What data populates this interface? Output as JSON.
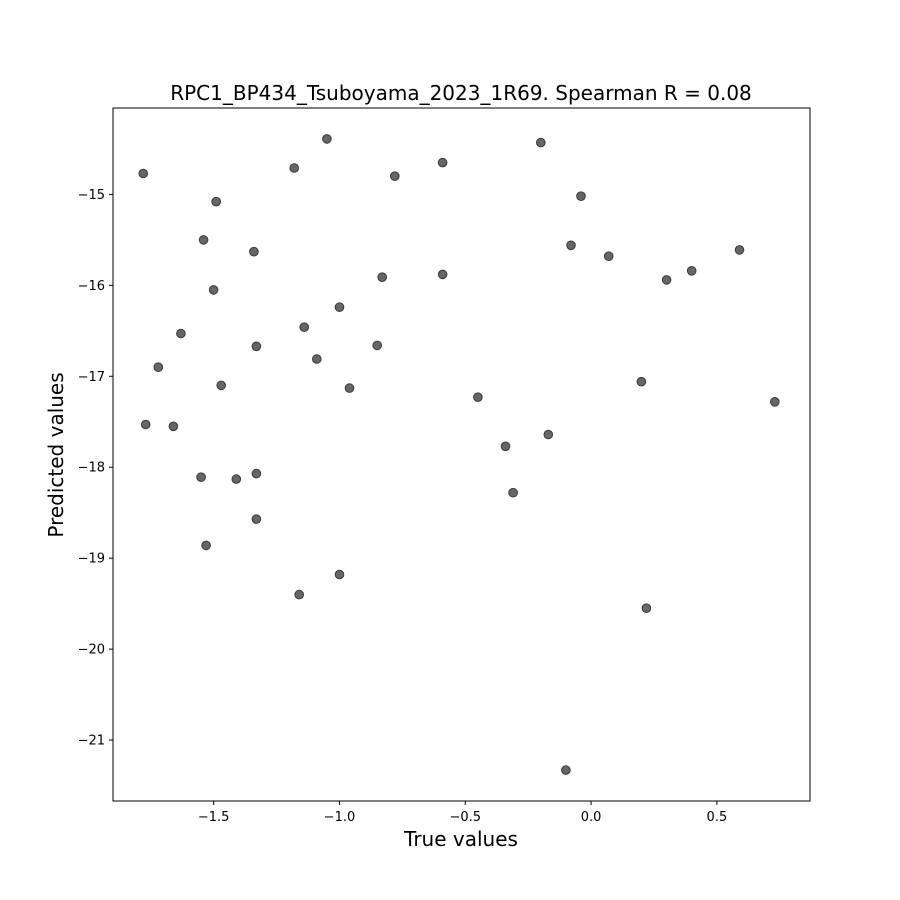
{
  "chart_data": {
    "type": "scatter",
    "title": "RPC1_BP434_Tsuboyama_2023_1R69. Spearman R = 0.08",
    "xlabel": "True values",
    "ylabel": "Predicted values",
    "xlim": [
      -1.9,
      0.87
    ],
    "ylim": [
      -21.67,
      -14.05
    ],
    "xticks": [
      -1.5,
      -1.0,
      -0.5,
      0.0,
      0.5
    ],
    "xtick_labels": [
      "−1.5",
      "−1.0",
      "−0.5",
      "0.0",
      "0.5"
    ],
    "yticks": [
      -15,
      -16,
      -17,
      -18,
      -19,
      -20,
      -21
    ],
    "ytick_labels": [
      "−15",
      "−16",
      "−17",
      "−18",
      "−19",
      "−20",
      "−21"
    ],
    "grid": false,
    "marker_color": "#666666",
    "marker_edge_color": "#3a3a3a",
    "points": [
      {
        "x": -1.78,
        "y": -14.77
      },
      {
        "x": -1.77,
        "y": -17.53
      },
      {
        "x": -1.72,
        "y": -16.9
      },
      {
        "x": -1.66,
        "y": -17.55
      },
      {
        "x": -1.63,
        "y": -16.53
      },
      {
        "x": -1.55,
        "y": -18.11
      },
      {
        "x": -1.54,
        "y": -15.5
      },
      {
        "x": -1.53,
        "y": -18.86
      },
      {
        "x": -1.5,
        "y": -16.05
      },
      {
        "x": -1.49,
        "y": -15.08
      },
      {
        "x": -1.47,
        "y": -17.1
      },
      {
        "x": -1.41,
        "y": -18.13
      },
      {
        "x": -1.34,
        "y": -15.63
      },
      {
        "x": -1.33,
        "y": -16.67
      },
      {
        "x": -1.33,
        "y": -18.07
      },
      {
        "x": -1.33,
        "y": -18.57
      },
      {
        "x": -1.18,
        "y": -14.71
      },
      {
        "x": -1.16,
        "y": -19.4
      },
      {
        "x": -1.14,
        "y": -16.46
      },
      {
        "x": -1.09,
        "y": -16.81
      },
      {
        "x": -1.05,
        "y": -14.39
      },
      {
        "x": -1.0,
        "y": -16.24
      },
      {
        "x": -1.0,
        "y": -19.18
      },
      {
        "x": -0.96,
        "y": -17.13
      },
      {
        "x": -0.85,
        "y": -16.66
      },
      {
        "x": -0.83,
        "y": -15.91
      },
      {
        "x": -0.78,
        "y": -14.8
      },
      {
        "x": -0.59,
        "y": -14.65
      },
      {
        "x": -0.59,
        "y": -15.88
      },
      {
        "x": -0.45,
        "y": -17.23
      },
      {
        "x": -0.34,
        "y": -17.77
      },
      {
        "x": -0.31,
        "y": -18.28
      },
      {
        "x": -0.2,
        "y": -14.43
      },
      {
        "x": -0.17,
        "y": -17.64
      },
      {
        "x": -0.1,
        "y": -21.33
      },
      {
        "x": -0.08,
        "y": -15.56
      },
      {
        "x": -0.04,
        "y": -15.02
      },
      {
        "x": 0.07,
        "y": -15.68
      },
      {
        "x": 0.2,
        "y": -17.06
      },
      {
        "x": 0.22,
        "y": -19.55
      },
      {
        "x": 0.3,
        "y": -15.94
      },
      {
        "x": 0.4,
        "y": -15.84
      },
      {
        "x": 0.59,
        "y": -15.61
      },
      {
        "x": 0.73,
        "y": -17.28
      }
    ]
  }
}
